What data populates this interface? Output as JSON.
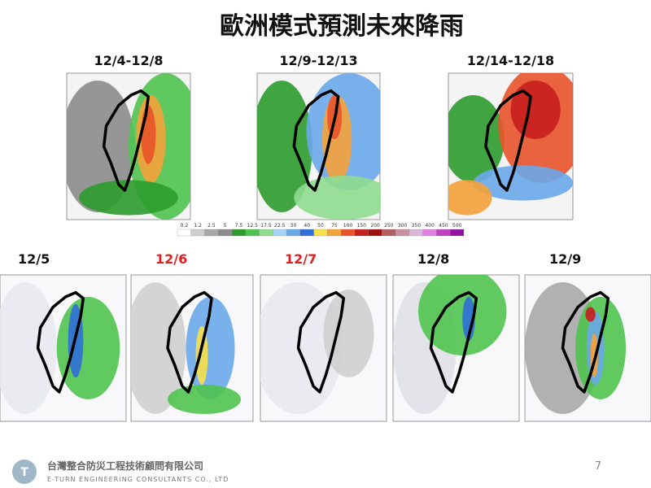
{
  "header": {
    "title": "歐洲模式預測未來降雨"
  },
  "weekly_maps": [
    {
      "label": "12/4-12/8"
    },
    {
      "label": "12/9-12/13"
    },
    {
      "label": "12/14-12/18"
    }
  ],
  "colorbar": {
    "labels": [
      0.2,
      1.2,
      2.5,
      5,
      7.5,
      12.5,
      17.5,
      22.5,
      30,
      40,
      50,
      75,
      100,
      150,
      200,
      250,
      300,
      350,
      400,
      450,
      500
    ],
    "colors": [
      "#ffffff",
      "#cfcfcf",
      "#a8a8a8",
      "#8c8c8c",
      "#2c9c2c",
      "#4fc34f",
      "#8fdc8f",
      "#a6d4f5",
      "#6aa8ea",
      "#2f6fd8",
      "#f7e04a",
      "#f4a23a",
      "#e8542a",
      "#c81e1e",
      "#9e1010",
      "#b06060",
      "#c890a0",
      "#d8b8d8",
      "#e080e0",
      "#c040c0",
      "#9010a0"
    ]
  },
  "daily_maps": [
    {
      "label": "12/5",
      "color": "#111111"
    },
    {
      "label": "12/6",
      "color": "#e02020"
    },
    {
      "label": "12/7",
      "color": "#e02020"
    },
    {
      "label": "12/8",
      "color": "#111111"
    },
    {
      "label": "12/9",
      "color": "#111111"
    }
  ],
  "footer": {
    "company": "台灣整合防災工程技術顧問有限公司",
    "company_en": "E-TURN ENGINEERING CONSULTANTS CO., LTD",
    "page": 7
  }
}
